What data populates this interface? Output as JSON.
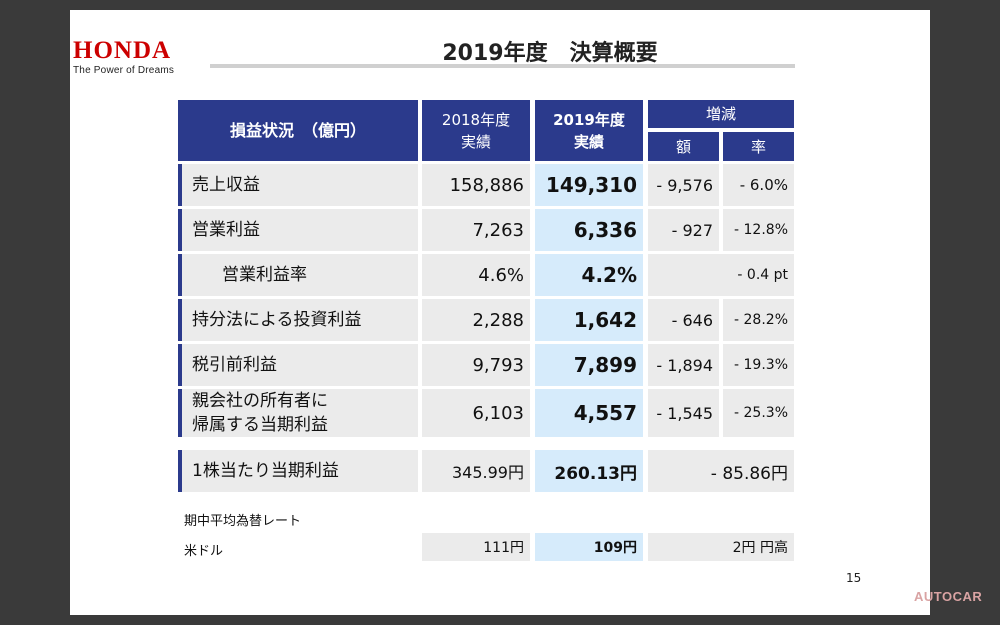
{
  "header": {
    "logo": "HONDA",
    "tagline": "The Power of Dreams",
    "title": "2019年度　決算概要"
  },
  "table": {
    "col_label": "損益状況　（億円）",
    "col_2018": "2018年度\n実績",
    "col_2019": "2019年度\n実績",
    "col_change": "増減",
    "col_amount": "額",
    "col_rate": "率",
    "rows": [
      {
        "label": "売上収益",
        "v2018": "158,886",
        "v2019": "149,310",
        "amount": "- 9,576",
        "rate": "- 6.0%"
      },
      {
        "label": "営業利益",
        "v2018": "7,263",
        "v2019": "6,336",
        "amount": "- 927",
        "rate": "- 12.8%"
      },
      {
        "label": "営業利益率",
        "v2018": "4.6%",
        "v2019": "4.2%",
        "combined": "- 0.4 pt"
      },
      {
        "label": "持分法による投資利益",
        "v2018": "2,288",
        "v2019": "1,642",
        "amount": "- 646",
        "rate": "- 28.2%"
      },
      {
        "label": "税引前利益",
        "v2018": "9,793",
        "v2019": "7,899",
        "amount": "- 1,894",
        "rate": "- 19.3%"
      },
      {
        "label": "親会社の所有者に\n帰属する当期利益",
        "v2018": "6,103",
        "v2019": "4,557",
        "amount": "- 1,545",
        "rate": "- 25.3%"
      },
      {
        "label": "1株当たり当期利益",
        "v2018": "345.99円",
        "v2019": "260.13円",
        "combined": "- 85.86円"
      }
    ]
  },
  "fx": {
    "heading": "期中平均為替レート",
    "label": "米ドル",
    "v2018": "111円",
    "v2019": "109円",
    "change": "2円 円高"
  },
  "page_number": "15",
  "watermark": "AUTOCAR",
  "colors": {
    "navy": "#2b3a8c",
    "gray_cell": "#ebebeb",
    "blue_cell": "#d6ebfb",
    "brand_red": "#cc0000"
  }
}
